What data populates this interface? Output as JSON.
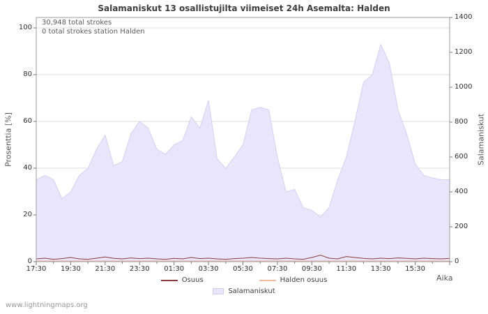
{
  "watermark": "www.lightningmaps.org",
  "chart_data": {
    "type": "area",
    "title": "Salamaniskut 13 osallistujilta viimeiset 24h Asemalta: Halden",
    "xlabel": "Aika",
    "ylabel_left": "Prosenttia  [%]",
    "ylabel_right": "Salamaniskut",
    "annotations": [
      "30,948 total strokes",
      "0 total strokes station Halden"
    ],
    "x_start": "17:30",
    "x_step_minutes": 30,
    "x_span_hours": 24,
    "x_tick_labels": [
      "17:30",
      "19:30",
      "21:30",
      "23:30",
      "01:30",
      "03:30",
      "05:30",
      "07:30",
      "09:30",
      "11:30",
      "13:30",
      "15:30"
    ],
    "y_ticks_left": [
      0,
      20,
      40,
      60,
      80,
      100
    ],
    "y_ticks_right": [
      0,
      200,
      400,
      600,
      800,
      1000,
      1200,
      1400
    ],
    "ylim_left": [
      0,
      100
    ],
    "ylim_right": [
      0,
      1400
    ],
    "grid": true,
    "legend_position": "bottom",
    "series": [
      {
        "name": "Osuus",
        "axis": "left",
        "style": "line",
        "color": "#8f3b3b",
        "values": [
          1.2,
          1.5,
          1.0,
          1.3,
          1.8,
          1.2,
          1.0,
          1.5,
          2.0,
          1.4,
          1.2,
          1.6,
          1.3,
          1.5,
          1.2,
          1.0,
          1.4,
          1.2,
          1.8,
          1.3,
          1.5,
          1.2,
          1.0,
          1.3,
          1.5,
          1.8,
          1.5,
          1.3,
          1.2,
          1.5,
          1.2,
          1.0,
          1.8,
          2.8,
          1.5,
          1.2,
          2.2,
          1.8,
          1.4,
          1.2,
          1.5,
          1.3,
          1.6,
          1.4,
          1.2,
          1.5,
          1.3,
          1.2,
          1.4
        ]
      },
      {
        "name": "Halden osuus",
        "axis": "left",
        "style": "line",
        "color": "#f0b9a4",
        "values": [
          0,
          0,
          0,
          0,
          0,
          0,
          0,
          0,
          0,
          0,
          0,
          0,
          0,
          0,
          0,
          0,
          0,
          0,
          0,
          0,
          0,
          0,
          0,
          0,
          0,
          0,
          0,
          0,
          0,
          0,
          0,
          0,
          0,
          0,
          0,
          0,
          0,
          0,
          0,
          0,
          0,
          0,
          0,
          0,
          0,
          0,
          0,
          0,
          0
        ]
      },
      {
        "name": "Salamaniskut",
        "axis": "right",
        "style": "area",
        "color": "#e9e5fa",
        "values": [
          470,
          495,
          470,
          360,
          400,
          495,
          535,
          645,
          725,
          550,
          575,
          735,
          805,
          765,
          645,
          615,
          670,
          695,
          830,
          765,
          925,
          590,
          535,
          600,
          670,
          870,
          885,
          870,
          600,
          400,
          415,
          310,
          295,
          255,
          310,
          470,
          600,
          805,
          1030,
          1070,
          1245,
          1140,
          870,
          735,
          560,
          495,
          480,
          470,
          470
        ]
      }
    ],
    "legend": [
      {
        "label": "Osuus",
        "swatch": "line",
        "color": "#8f3b3b"
      },
      {
        "label": "Halden osuus",
        "swatch": "line",
        "color": "#f0b9a4"
      },
      {
        "label": "Salamaniskut",
        "swatch": "box",
        "color": "#e9e5fa"
      }
    ]
  }
}
